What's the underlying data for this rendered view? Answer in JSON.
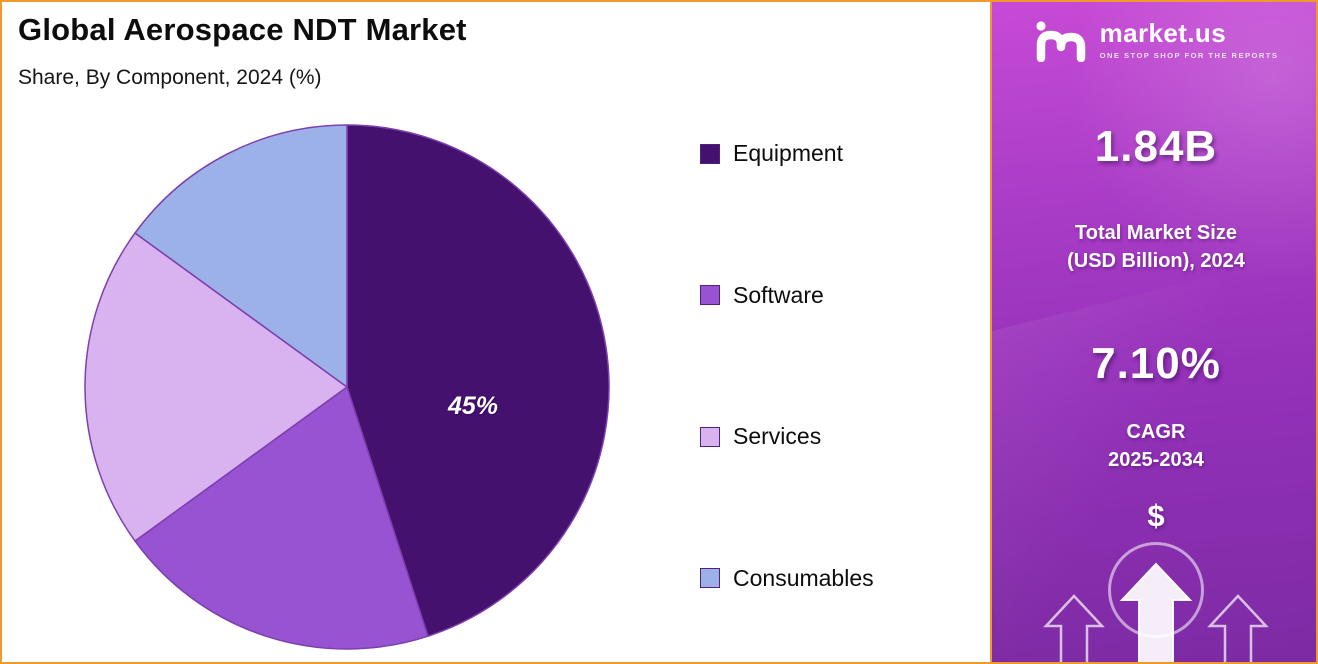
{
  "title": "Global Aerospace NDT Market",
  "subtitle": "Share, By Component, 2024 (%)",
  "chart_data": {
    "type": "pie",
    "title": "Global Aerospace NDT Market",
    "subtitle": "Share, By Component, 2024 (%)",
    "labels": [
      "Equipment",
      "Software",
      "Services",
      "Consumables"
    ],
    "values": [
      45,
      20,
      20,
      15
    ],
    "colors": [
      "#45116e",
      "#9853d2",
      "#d8b3ef",
      "#9db1e9"
    ],
    "slice_stroke": "#7d3fae",
    "data_label": "45%",
    "data_label_slice": "Equipment",
    "start_angle_deg": -90,
    "direction": "clockwise",
    "legend_position": "right"
  },
  "sidebar": {
    "brand_name": "market.us",
    "brand_tagline": "ONE STOP SHOP FOR THE REPORTS",
    "market_size_value": "1.84B",
    "market_size_label_line1": "Total Market Size",
    "market_size_label_line2": "(USD Billion), 2024",
    "cagr_value": "7.10%",
    "cagr_label_line1": "CAGR",
    "cagr_label_line2": "2025-2034",
    "currency_symbol": "$",
    "background_top_color": "#c74ad6",
    "background_bottom_color": "#7c2aa4",
    "frame_border_color": "#f0992e",
    "text_color": "#ffffff"
  }
}
